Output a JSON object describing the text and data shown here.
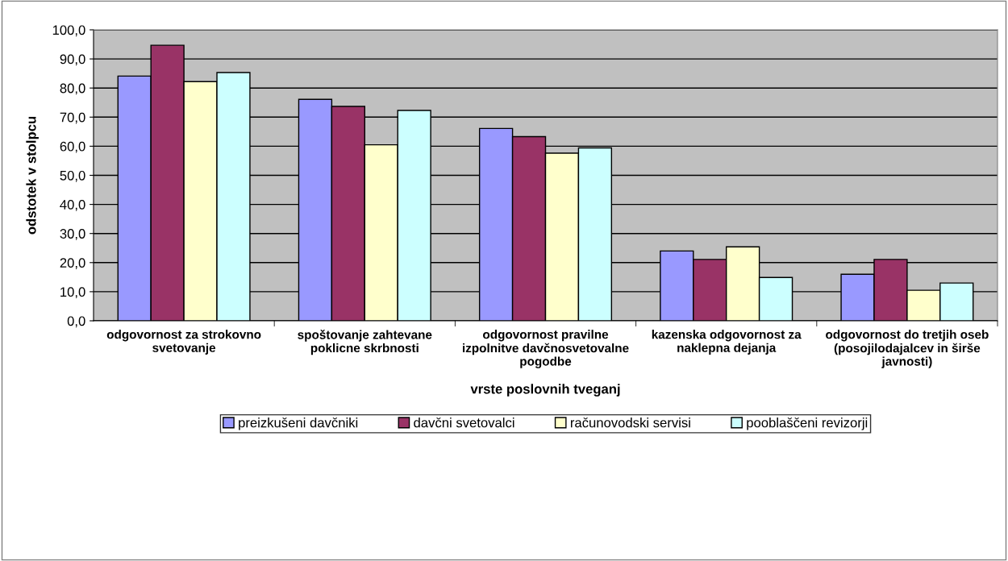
{
  "chart_data": {
    "type": "bar",
    "xlabel": "vrste poslovnih tveganj",
    "ylabel": "odstotek v stolpcu",
    "categories": [
      "odgovornost za strokovno\nsvetovanje",
      "spoštovanje zahtevane\npoklicne skrbnosti",
      "odgovornost pravilne\nizpolnitve davčnosvetovalne\npogodbe",
      "kazenska odgovornost za\nnaklepna dejanja",
      "odgovornost do tretjih oseb\n(posojilodajalcev in širše\njavnosti)"
    ],
    "series": [
      {
        "name": "preizkušeni davčniki",
        "color": "#9999ff",
        "values": [
          84.1,
          76.1,
          66.1,
          24.0,
          16.0
        ]
      },
      {
        "name": "davčni svetovalci",
        "color": "#993366",
        "values": [
          94.7,
          73.7,
          63.3,
          21.1,
          21.1
        ]
      },
      {
        "name": "računovodski servisi",
        "color": "#ffffcc",
        "values": [
          82.2,
          60.5,
          57.6,
          25.4,
          10.5
        ]
      },
      {
        "name": "pooblaščeni revizorji",
        "color": "#ccffff",
        "values": [
          85.3,
          72.3,
          59.4,
          14.9,
          13.0
        ]
      }
    ],
    "ylim": [
      0,
      100
    ],
    "yticks": [
      {
        "value": 0,
        "label": "0,0"
      },
      {
        "value": 10,
        "label": "10,0"
      },
      {
        "value": 20,
        "label": "20,0"
      },
      {
        "value": 30,
        "label": "30,0"
      },
      {
        "value": 40,
        "label": "40,0"
      },
      {
        "value": 50,
        "label": "50,0"
      },
      {
        "value": 60,
        "label": "60,0"
      },
      {
        "value": 70,
        "label": "70,0"
      },
      {
        "value": 80,
        "label": "80,0"
      },
      {
        "value": 90,
        "label": "90,0"
      },
      {
        "value": 100,
        "label": "100,0"
      }
    ],
    "grid": "y",
    "legend": "bottom"
  }
}
